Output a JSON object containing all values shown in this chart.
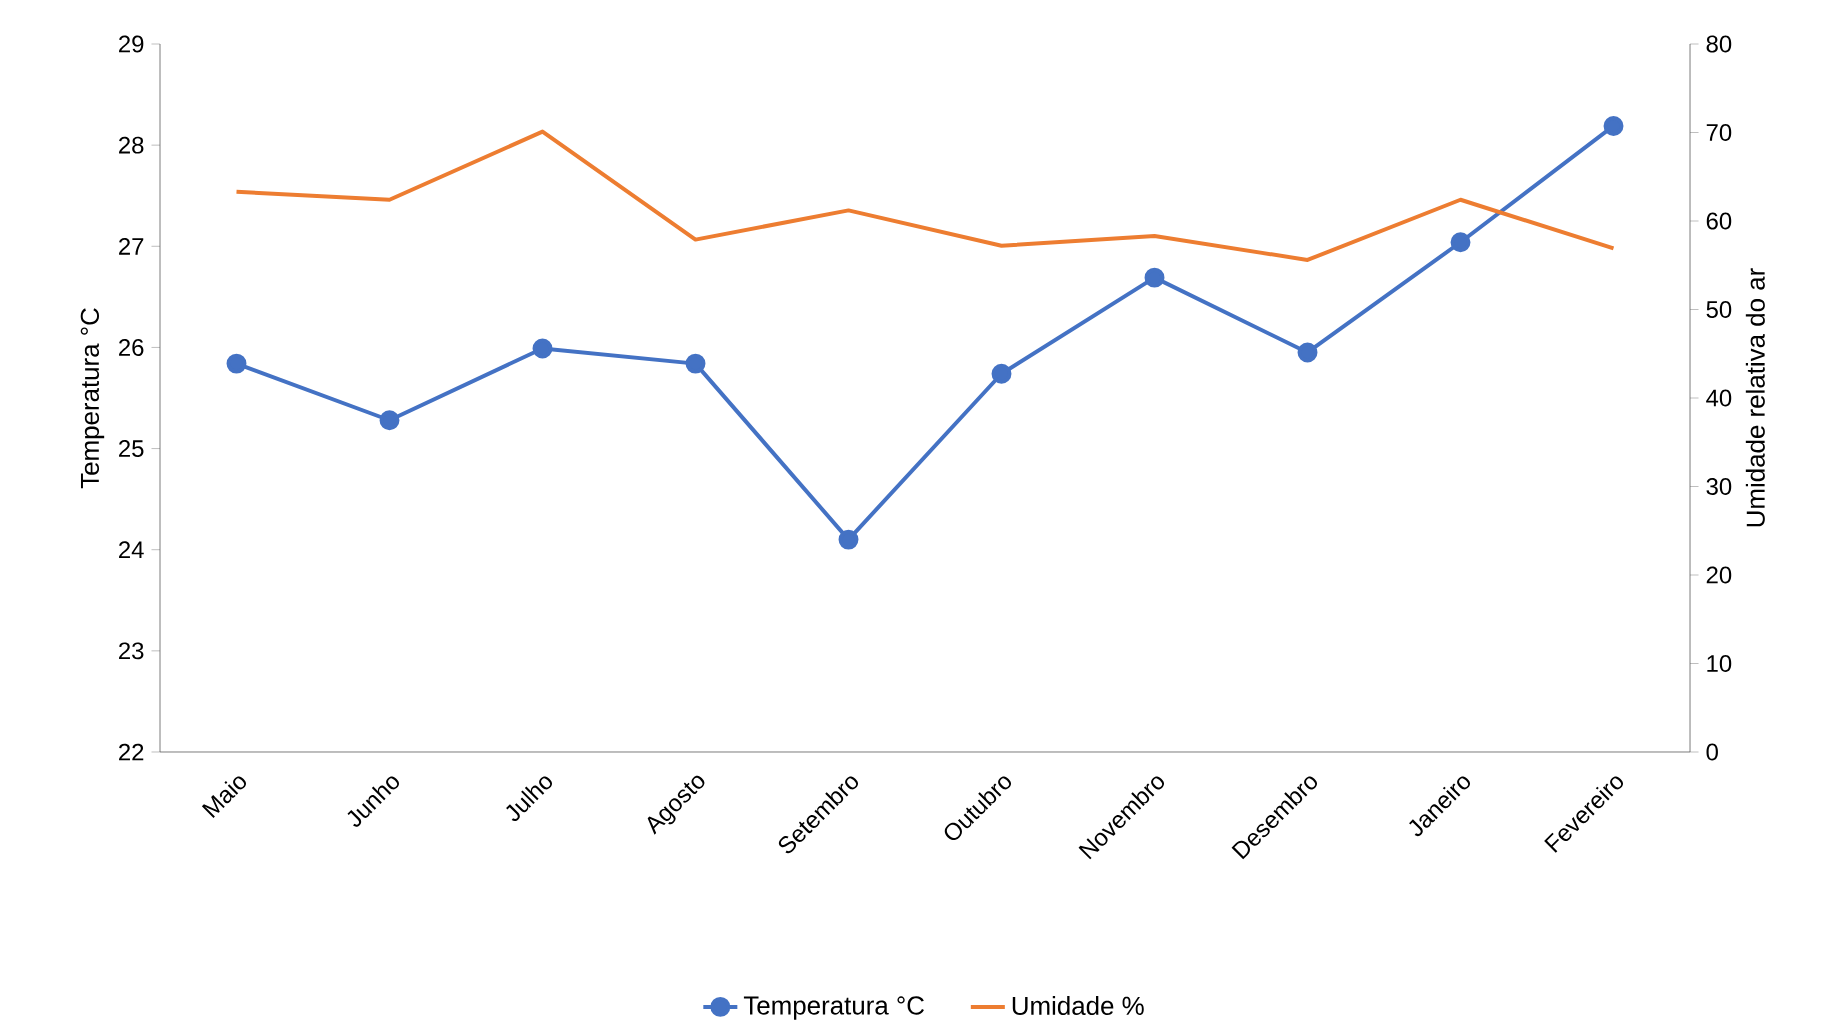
{
  "chart_data": {
    "type": "line",
    "categories": [
      "Maio",
      "Junho",
      "Julho",
      "Agosto",
      "Setembro",
      "Outubro",
      "Novembro",
      "Desembro",
      "Janeiro",
      "Fevereiro"
    ],
    "series": [
      {
        "name": "Temperatura °C",
        "color": "#4472c4",
        "marker": "circle",
        "values": [
          25.84,
          25.28,
          25.99,
          25.84,
          24.1,
          25.74,
          26.69,
          25.95,
          27.04,
          28.19
        ]
      },
      {
        "name": "Umidade %",
        "color": "#ed7d31",
        "marker": "none",
        "axis": "y2",
        "values": [
          63.3,
          62.4,
          70.1,
          57.9,
          61.2,
          57.2,
          58.3,
          55.6,
          62.4,
          56.9
        ]
      }
    ],
    "ylabel": "Temperatura °C",
    "y2label": "Umidade relativa do ar",
    "ylim": [
      22,
      29
    ],
    "yticks": [
      22,
      23,
      24,
      25,
      26,
      27,
      28,
      29
    ],
    "y2lim": [
      0,
      80
    ],
    "y2ticks": [
      0,
      10,
      20,
      30,
      40,
      50,
      60,
      70,
      80
    ],
    "grid": false,
    "legend": "bottom"
  }
}
